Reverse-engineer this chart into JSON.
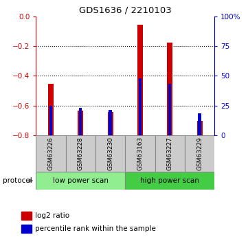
{
  "title": "GDS1636 / 2210103",
  "samples": [
    "GSM63226",
    "GSM63228",
    "GSM63230",
    "GSM63163",
    "GSM63227",
    "GSM63229"
  ],
  "log2_ratio": [
    -0.455,
    -0.635,
    -0.645,
    -0.055,
    -0.175,
    -0.705
  ],
  "percentile_rank": [
    24.5,
    23.0,
    21.5,
    48.0,
    43.5,
    18.5
  ],
  "groups": [
    {
      "label": "low power scan",
      "indices": [
        0,
        1,
        2
      ],
      "color": "#90ee90"
    },
    {
      "label": "high power scan",
      "indices": [
        3,
        4,
        5
      ],
      "color": "#44cc44"
    }
  ],
  "ylim_left": [
    -0.8,
    0.0
  ],
  "ylim_right": [
    0,
    100
  ],
  "yticks_left": [
    0.0,
    -0.2,
    -0.4,
    -0.6,
    -0.8
  ],
  "yticks_right": [
    0,
    25,
    50,
    75,
    100
  ],
  "ytick_labels_right": [
    "0",
    "25",
    "50",
    "75",
    "100%"
  ],
  "red_color": "#cc0000",
  "blue_color": "#0000cc",
  "grid_color": "#555555",
  "protocol_label": "protocol",
  "legend_red": "log2 ratio",
  "legend_blue": "percentile rank within the sample",
  "bg_color": "#ffffff",
  "plot_bg": "#ffffff",
  "sample_box_color": "#cccccc",
  "red_bar_width": 0.18,
  "blue_bar_width": 0.1
}
